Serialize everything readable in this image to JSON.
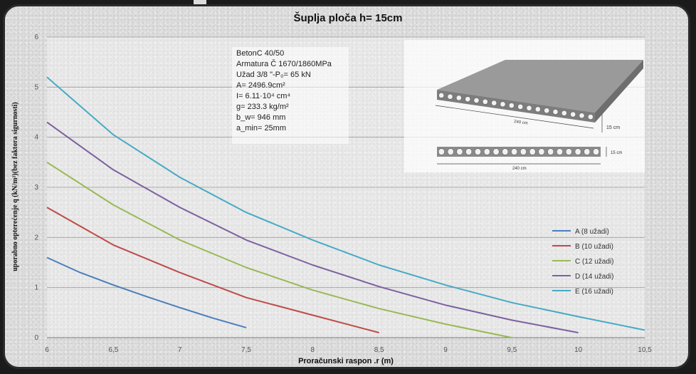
{
  "chart_data": {
    "type": "line",
    "title": "Šuplja ploča  h= 15cm",
    "xlabel": "Proračunski raspon .r (m)",
    "ylabel": "uporabno opterećenje q (kN/m²)(bez faktora sigurnosti)",
    "xlim": [
      6,
      10.5
    ],
    "ylim": [
      0,
      6
    ],
    "x_ticks": [
      6,
      6.5,
      7,
      7.5,
      8,
      8.5,
      9,
      9.5,
      10,
      10.5
    ],
    "x_tick_labels": [
      "6",
      "6,5",
      "7",
      "7,5",
      "8",
      "8,5",
      "9",
      "9,5",
      "10",
      "10,5"
    ],
    "y_ticks": [
      0,
      1,
      2,
      3,
      4,
      5,
      6
    ],
    "y_tick_labels": [
      "0",
      "1",
      "2",
      "3",
      "4",
      "5",
      "6"
    ],
    "grid": "horizontal",
    "legend_position": "right",
    "series": [
      {
        "name": "A  (8 užadi)",
        "color": "#4a7ebb",
        "x": [
          6,
          6.25,
          6.5,
          6.75,
          7,
          7.25,
          7.5
        ],
        "values": [
          1.6,
          1.3,
          1.05,
          0.82,
          0.6,
          0.39,
          0.2
        ]
      },
      {
        "name": "B  (10 užadi)",
        "color": "#be4b48",
        "x": [
          6,
          6.5,
          7,
          7.5,
          8,
          8.5
        ],
        "values": [
          2.6,
          1.85,
          1.3,
          0.8,
          0.45,
          0.1
        ]
      },
      {
        "name": "C  (12 užadi)",
        "color": "#98b954",
        "x": [
          6,
          6.5,
          7,
          7.5,
          8,
          8.5,
          9,
          9.5
        ],
        "values": [
          3.5,
          2.65,
          1.95,
          1.4,
          0.95,
          0.58,
          0.27,
          0.0
        ]
      },
      {
        "name": "D  (14 užadi)",
        "color": "#7d60a0",
        "x": [
          6,
          6.5,
          7,
          7.5,
          8,
          8.5,
          9,
          9.5,
          10
        ],
        "values": [
          4.3,
          3.35,
          2.6,
          1.95,
          1.45,
          1.02,
          0.65,
          0.35,
          0.1
        ]
      },
      {
        "name": "E  (16 užadi)",
        "color": "#46aac5",
        "x": [
          6,
          6.5,
          7,
          7.5,
          8,
          8.5,
          9,
          9.5,
          10,
          10.5
        ],
        "values": [
          5.2,
          4.05,
          3.2,
          2.5,
          1.95,
          1.45,
          1.05,
          0.7,
          0.42,
          0.15
        ]
      }
    ]
  },
  "info_box": {
    "lines": [
      "BetonC 40/50",
      "Armatura Č 1670/1860MPa",
      "Užad 3/8 \"-P₀= 65 kN",
      "A= 2496.9cm²",
      "I=  6.11·10⁴ cm⁴",
      "g=  233.3 kg/m²",
      "b_w= 946 mm",
      "a_min= 25mm"
    ]
  },
  "slab_drawing": {
    "width_label": "240 cm",
    "height_label": "15 cm",
    "section_width_label": "240 cm",
    "section_height_label": "15 cm"
  }
}
